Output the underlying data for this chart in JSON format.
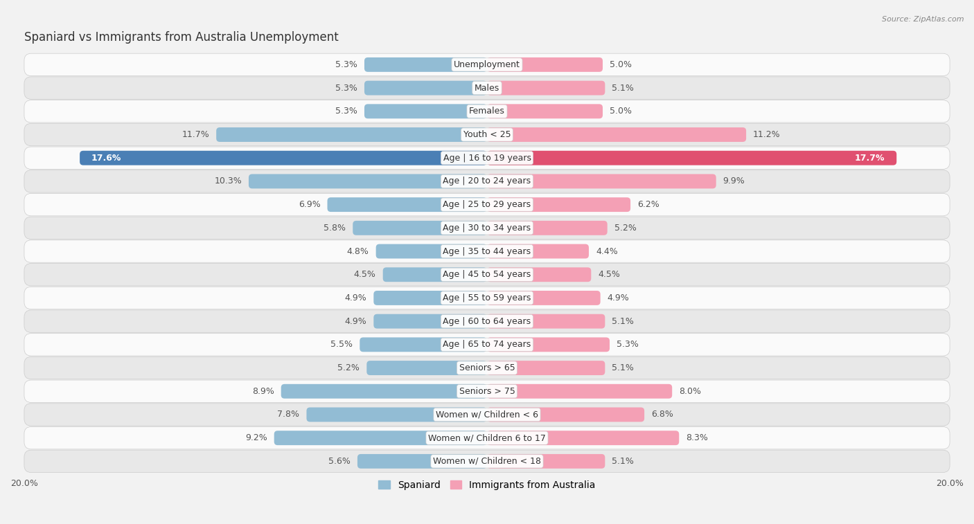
{
  "title": "Spaniard vs Immigrants from Australia Unemployment",
  "source": "Source: ZipAtlas.com",
  "categories": [
    "Unemployment",
    "Males",
    "Females",
    "Youth < 25",
    "Age | 16 to 19 years",
    "Age | 20 to 24 years",
    "Age | 25 to 29 years",
    "Age | 30 to 34 years",
    "Age | 35 to 44 years",
    "Age | 45 to 54 years",
    "Age | 55 to 59 years",
    "Age | 60 to 64 years",
    "Age | 65 to 74 years",
    "Seniors > 65",
    "Seniors > 75",
    "Women w/ Children < 6",
    "Women w/ Children 6 to 17",
    "Women w/ Children < 18"
  ],
  "spaniard": [
    5.3,
    5.3,
    5.3,
    11.7,
    17.6,
    10.3,
    6.9,
    5.8,
    4.8,
    4.5,
    4.9,
    4.9,
    5.5,
    5.2,
    8.9,
    7.8,
    9.2,
    5.6
  ],
  "australia": [
    5.0,
    5.1,
    5.0,
    11.2,
    17.7,
    9.9,
    6.2,
    5.2,
    4.4,
    4.5,
    4.9,
    5.1,
    5.3,
    5.1,
    8.0,
    6.8,
    8.3,
    5.1
  ],
  "spaniard_color": "#92bcd4",
  "australia_color": "#f4a0b5",
  "spaniard_highlight_color": "#4a7fb5",
  "australia_highlight_color": "#e05070",
  "bg_color": "#f2f2f2",
  "row_color_light": "#fafafa",
  "row_color_dark": "#e8e8e8",
  "max_val": 20.0,
  "label_fontsize": 9.0,
  "title_fontsize": 12,
  "legend_fontsize": 10
}
